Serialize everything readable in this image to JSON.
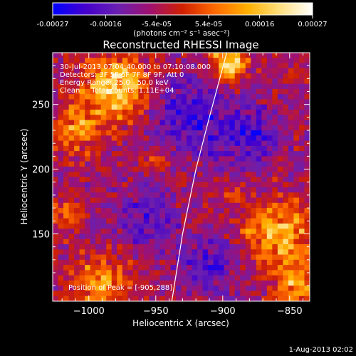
{
  "chart_data": {
    "type": "heatmap",
    "title": "Reconstructed RHESSI Image",
    "xlabel": "Heliocentric X (arcsec)",
    "ylabel": "Heliocentric Y (arcsec)",
    "xlim": [
      -1027,
      -835
    ],
    "ylim": [
      98,
      290
    ],
    "xticks": [
      -1000,
      -950,
      -900,
      -850
    ],
    "xtick_labels": [
      "−1000",
      "−950",
      "−900",
      "−850"
    ],
    "yticks": [
      150,
      200,
      250
    ],
    "ytick_labels": [
      "150",
      "200",
      "250"
    ],
    "colorbar": {
      "range": [
        -0.00027,
        0.00027
      ],
      "tick_values": [
        -0.00027,
        -0.00016,
        -5.4e-05,
        5.4e-05,
        0.00016,
        0.00027
      ],
      "tick_labels": [
        "-0.00027",
        "-0.00016",
        "-5.4e-05",
        "5.4e-05",
        "0.00016",
        "0.00027"
      ],
      "label": "(photons cm⁻² s⁻¹ asec⁻²)",
      "stops": [
        "#0000ff",
        "#4400cc",
        "#6a1fb0",
        "#a01070",
        "#d02000",
        "#ff6a00",
        "#ffb000",
        "#ffe080",
        "#ffffff"
      ]
    },
    "annotations": [
      "30-Jul-2013 07:04:40.000 to 07:10:08.000",
      "Detectors: 3F 5F 6F 7F 8F 9F, Att 0",
      "Energy Range: 25.0 - 50.0 keV",
      "Clean     Total counts: 1.11E+04"
    ],
    "peak_label": "Position of Peak = [-905,288]",
    "peak": [
      -905,
      288
    ],
    "limb_points": [
      [
        -938,
        98
      ],
      [
        -930,
        150
      ],
      [
        -920,
        200
      ],
      [
        -910,
        240
      ],
      [
        -897,
        290
      ]
    ],
    "hot_regions": [
      {
        "x": -980,
        "y": 262,
        "r": 24,
        "amp": 0.00026
      },
      {
        "x": -1010,
        "y": 230,
        "r": 18,
        "amp": 0.00015
      },
      {
        "x": -895,
        "y": 283,
        "r": 14,
        "amp": 0.00026
      },
      {
        "x": -858,
        "y": 150,
        "r": 24,
        "amp": 0.00022
      },
      {
        "x": -845,
        "y": 110,
        "r": 16,
        "amp": 0.00018
      },
      {
        "x": -990,
        "y": 110,
        "r": 22,
        "amp": 0.00017
      },
      {
        "x": -1018,
        "y": 165,
        "r": 14,
        "amp": 0.00012
      },
      {
        "x": -950,
        "y": 205,
        "r": 10,
        "amp": 0.0001
      },
      {
        "x": -890,
        "y": 180,
        "r": 8,
        "amp": 8e-05
      }
    ],
    "cold_regions": [
      {
        "x": -925,
        "y": 240,
        "r": 30,
        "amp": -0.00014
      },
      {
        "x": -960,
        "y": 160,
        "r": 24,
        "amp": -0.0001
      },
      {
        "x": -880,
        "y": 225,
        "r": 24,
        "amp": -0.00012
      },
      {
        "x": -910,
        "y": 125,
        "r": 22,
        "amp": -0.00011
      }
    ]
  },
  "footer": {
    "date": "1-Aug-2013 02:02"
  }
}
